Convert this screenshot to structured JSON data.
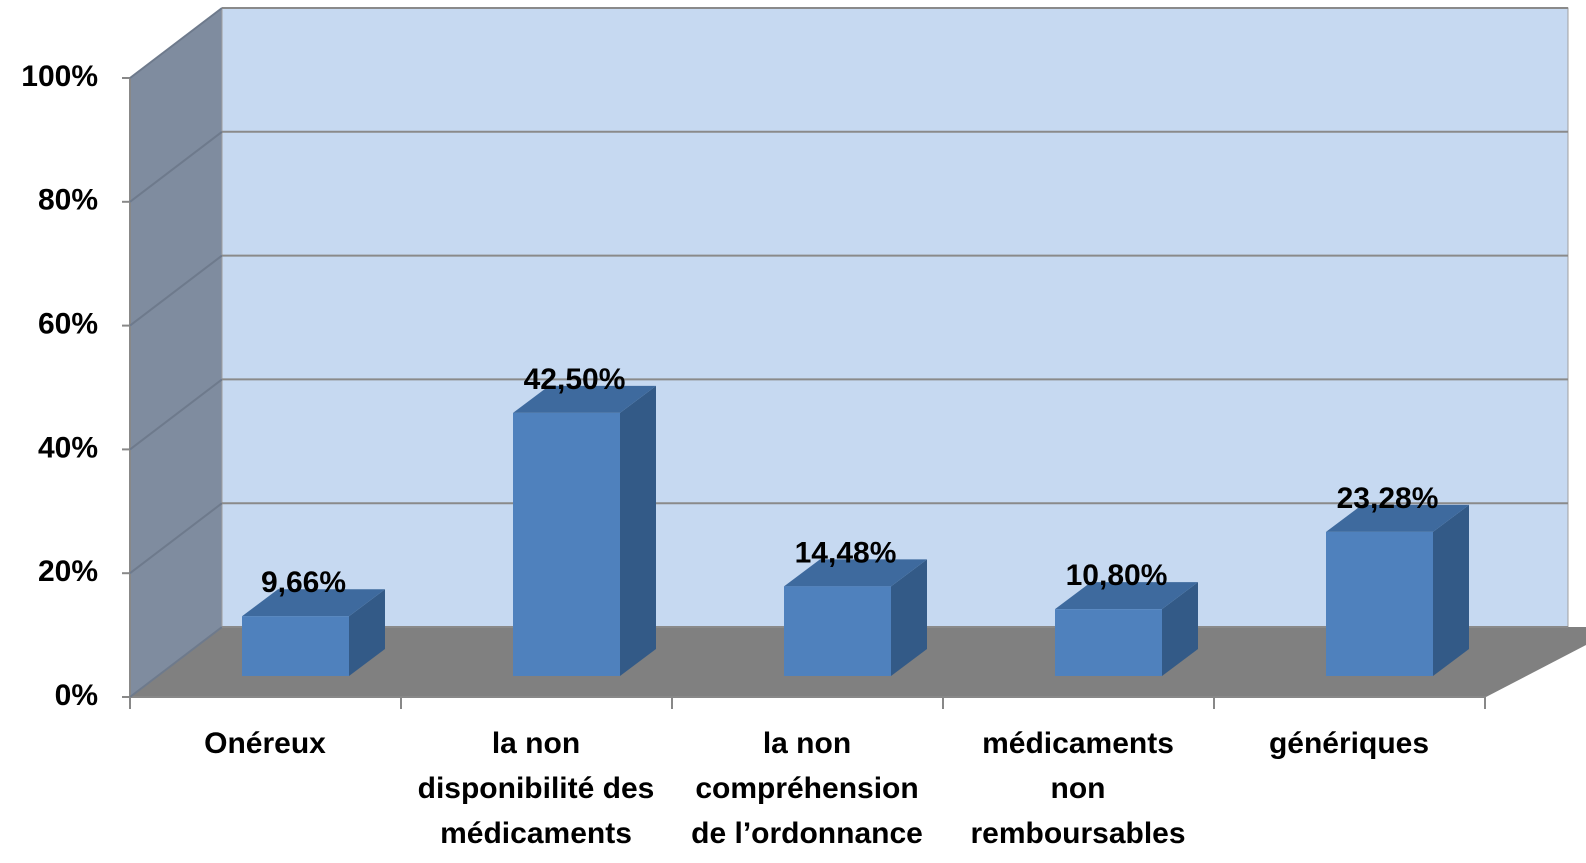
{
  "chart_data": {
    "type": "bar",
    "categories": [
      [
        "Onéreux"
      ],
      [
        "la non",
        "disponibilité des",
        "médicaments"
      ],
      [
        "la non",
        "compréhension",
        "de l’ordonnance"
      ],
      [
        "médicaments",
        "non",
        "remboursables"
      ],
      [
        "génériques"
      ]
    ],
    "values": [
      9.66,
      42.5,
      14.48,
      10.8,
      23.28
    ],
    "value_labels": [
      "9,66%",
      "42,50%",
      "14,48%",
      "10,80%",
      "23,28%"
    ],
    "color": "#4f81bd",
    "ylim": [
      0,
      100
    ],
    "yticks": [
      {
        "value": 0,
        "label": "0%"
      },
      {
        "value": 20,
        "label": "20%"
      },
      {
        "value": 40,
        "label": "40%"
      },
      {
        "value": 60,
        "label": "60%"
      },
      {
        "value": 80,
        "label": "80%"
      },
      {
        "value": 100,
        "label": "100%"
      }
    ],
    "grid": true
  }
}
